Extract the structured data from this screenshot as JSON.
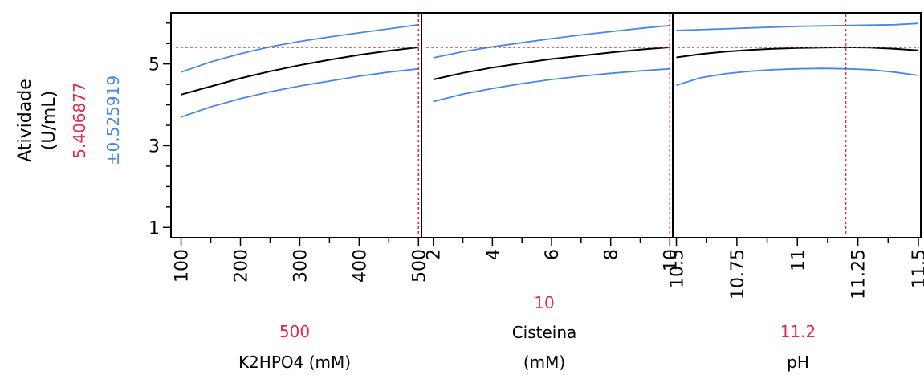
{
  "y_axis": {
    "label_line1": "Atividade",
    "label_line2": "(U/mL)",
    "current_value": "5.406877",
    "ci_value": "±0.525919",
    "ticks": [
      "1",
      "3",
      "5"
    ]
  },
  "colors": {
    "prediction": "#000000",
    "confidence": "#4a86e8",
    "crosshair": "#e8294a",
    "frame": "#000000"
  },
  "chart_data": {
    "type": "line",
    "title": "",
    "ylabel": "Atividade (U/mL)",
    "ylim": [
      0.75,
      6.25
    ],
    "y_ticks": [
      1,
      3,
      5
    ],
    "current_prediction": 5.406877,
    "confidence_halfwidth": 0.525919,
    "panels": [
      {
        "factor_label": "K2HPO4 (mM)",
        "current_value_label": "500",
        "current_x": 500,
        "xlim": [
          83,
          505
        ],
        "x_ticks": [
          100,
          200,
          300,
          400,
          500
        ],
        "x_tick_labels": [
          "100",
          "200",
          "300",
          "400",
          "500"
        ],
        "series": [
          {
            "role": "upper",
            "x": [
              100,
              150,
              200,
              250,
              300,
              350,
              400,
              450,
              500
            ],
            "values": [
              4.8,
              5.05,
              5.25,
              5.42,
              5.55,
              5.66,
              5.76,
              5.86,
              5.96
            ]
          },
          {
            "role": "prediction",
            "x": [
              100,
              150,
              200,
              250,
              300,
              350,
              400,
              450,
              500
            ],
            "values": [
              4.25,
              4.45,
              4.65,
              4.82,
              4.97,
              5.1,
              5.22,
              5.32,
              5.407
            ]
          },
          {
            "role": "lower",
            "x": [
              100,
              150,
              200,
              250,
              300,
              350,
              400,
              450,
              500
            ],
            "values": [
              3.7,
              3.95,
              4.15,
              4.32,
              4.46,
              4.58,
              4.7,
              4.8,
              4.88
            ]
          }
        ]
      },
      {
        "factor_label_line1": "Cisteina",
        "factor_label_line2": "(mM)",
        "current_value_label": "10",
        "current_x": 10,
        "xlim": [
          1.6,
          10.1
        ],
        "x_ticks": [
          2,
          4,
          6,
          8,
          10
        ],
        "x_tick_labels": [
          "2",
          "4",
          "6",
          "8",
          "10"
        ],
        "series": [
          {
            "role": "upper",
            "x": [
              2,
              3,
              4,
              5,
              6,
              7,
              8,
              9,
              10
            ],
            "values": [
              5.15,
              5.3,
              5.42,
              5.52,
              5.62,
              5.71,
              5.79,
              5.87,
              5.94
            ]
          },
          {
            "role": "prediction",
            "x": [
              2,
              3,
              4,
              5,
              6,
              7,
              8,
              9,
              10
            ],
            "values": [
              4.62,
              4.78,
              4.91,
              5.02,
              5.12,
              5.2,
              5.28,
              5.35,
              5.407
            ]
          },
          {
            "role": "lower",
            "x": [
              2,
              3,
              4,
              5,
              6,
              7,
              8,
              9,
              10
            ],
            "values": [
              4.08,
              4.26,
              4.4,
              4.52,
              4.62,
              4.7,
              4.77,
              4.83,
              4.88
            ]
          }
        ]
      },
      {
        "factor_label": "pH",
        "current_value_label": "11.2",
        "current_x": 11.2,
        "xlim": [
          10.485,
          11.51
        ],
        "x_ticks": [
          10.5,
          10.75,
          11,
          11.25,
          11.5
        ],
        "x_tick_labels": [
          "10.5",
          "10.75",
          "11",
          "11.25",
          "11.5"
        ],
        "series": [
          {
            "role": "upper",
            "x": [
              10.5,
              10.6,
              10.7,
              10.8,
              10.9,
              11.0,
              11.1,
              11.2,
              11.3,
              11.4,
              11.5
            ],
            "values": [
              5.82,
              5.84,
              5.86,
              5.88,
              5.9,
              5.92,
              5.93,
              5.94,
              5.95,
              5.96,
              5.99
            ]
          },
          {
            "role": "prediction",
            "x": [
              10.5,
              10.6,
              10.7,
              10.8,
              10.9,
              11.0,
              11.1,
              11.2,
              11.3,
              11.4,
              11.5
            ],
            "values": [
              5.16,
              5.24,
              5.3,
              5.34,
              5.37,
              5.39,
              5.4,
              5.407,
              5.4,
              5.37,
              5.33
            ]
          },
          {
            "role": "lower",
            "x": [
              10.5,
              10.6,
              10.7,
              10.8,
              10.9,
              11.0,
              11.1,
              11.2,
              11.3,
              11.4,
              11.5
            ],
            "values": [
              4.48,
              4.66,
              4.76,
              4.82,
              4.86,
              4.88,
              4.89,
              4.88,
              4.86,
              4.8,
              4.72
            ]
          }
        ]
      }
    ]
  }
}
